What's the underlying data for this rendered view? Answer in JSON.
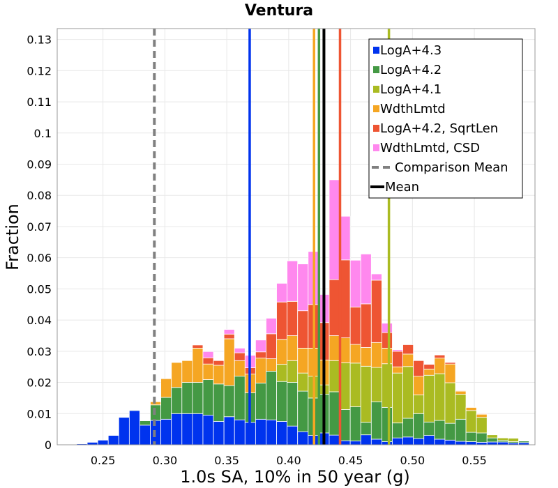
{
  "chart_data": {
    "type": "bar",
    "stacked": true,
    "title": "Ventura",
    "xlabel": "1.0s SA, 10% in 50 year (g)",
    "ylabel": "Fraction",
    "xlim": [
      0.213,
      0.599
    ],
    "ylim": [
      0,
      0.1335
    ],
    "xticks": [
      "0.25",
      "0.30",
      "0.35",
      "0.40",
      "0.45",
      "0.50",
      "0.55"
    ],
    "yticks": [
      "0",
      "0.01",
      "0.02",
      "0.03",
      "0.04",
      "0.05",
      "0.06",
      "0.07",
      "0.08",
      "0.09",
      "0.1",
      "0.11",
      "0.12",
      "0.13"
    ],
    "bin_width": 0.0085,
    "bin_centers": [
      0.2245,
      0.233,
      0.2415,
      0.25,
      0.2585,
      0.267,
      0.2755,
      0.284,
      0.2925,
      0.301,
      0.3095,
      0.318,
      0.3265,
      0.335,
      0.3435,
      0.352,
      0.3605,
      0.369,
      0.3775,
      0.386,
      0.3945,
      0.403,
      0.4115,
      0.42,
      0.4285,
      0.437,
      0.4455,
      0.454,
      0.4625,
      0.471,
      0.4795,
      0.488,
      0.4965,
      0.505,
      0.5135,
      0.522,
      0.5305,
      0.539,
      0.5475,
      0.556,
      0.5645,
      0.573,
      0.5815,
      0.59
    ],
    "series": [
      {
        "name": "LogA+4.3",
        "color": "#0033ee",
        "values": [
          0,
          0.0003,
          0.0008,
          0.0015,
          0.003,
          0.0088,
          0.011,
          0.0063,
          0.0078,
          0.0082,
          0.01,
          0.01,
          0.01,
          0.0095,
          0.0075,
          0.009,
          0.008,
          0.0072,
          0.0082,
          0.008,
          0.0075,
          0.006,
          0.0042,
          0.003,
          0.0038,
          0.0031,
          0.0013,
          0.0012,
          0.0032,
          0.0018,
          0.001,
          0.0022,
          0.0025,
          0.002,
          0.003,
          0.0018,
          0.0015,
          0.0011,
          0.001,
          0.0008,
          0.0009,
          0.0009,
          0.0006,
          0.0007
        ]
      },
      {
        "name": "LogA+4.2",
        "color": "#449944",
        "values": [
          0,
          0,
          0,
          0,
          0,
          0,
          0.0002,
          0.0014,
          0.005,
          0.007,
          0.0084,
          0.01,
          0.01,
          0.0114,
          0.012,
          0.01,
          0.014,
          0.0095,
          0.0116,
          0.0156,
          0.0128,
          0.014,
          0.013,
          0.012,
          0.0124,
          0.0139,
          0.01,
          0.011,
          0.004,
          0.012,
          0.011,
          0.0048,
          0.006,
          0.008,
          0.0043,
          0.006,
          0.0054,
          0.0071,
          0.003,
          0.003,
          0.0013,
          0.0005,
          0.0004,
          0.0005
        ]
      },
      {
        "name": "LogA+4.1",
        "color": "#aabb22",
        "values": [
          0,
          0,
          0,
          0,
          0,
          0,
          0,
          0,
          0,
          0,
          0,
          0,
          0,
          0,
          0,
          0,
          0,
          0,
          0,
          0,
          0.0055,
          0.007,
          0.0058,
          0.007,
          0.003,
          0.01,
          0.015,
          0.014,
          0.018,
          0.011,
          0.014,
          0.016,
          0.0166,
          0.006,
          0.015,
          0.015,
          0.013,
          0.008,
          0.007,
          0.005,
          0.001,
          0.0008,
          0.0011,
          0.0001
        ]
      },
      {
        "name": "WdthLmtd",
        "color": "#f5a623",
        "values": [
          0,
          0,
          0,
          0,
          0,
          0,
          0,
          0,
          0.001,
          0.006,
          0.008,
          0.007,
          0.011,
          0.005,
          0.006,
          0.015,
          0.005,
          0.006,
          0.008,
          0.004,
          0.008,
          0.008,
          0.008,
          0.009,
          0.008,
          0.008,
          0.008,
          0.006,
          0.006,
          0.008,
          0.005,
          0.002,
          0.004,
          0.006,
          0.002,
          0.005,
          0.006,
          0.001,
          0.001,
          0.001,
          0,
          0,
          0,
          0
        ]
      },
      {
        "name": "LogA+4.2, SqrtLen",
        "color": "#ee5533",
        "values": [
          0,
          0,
          0,
          0,
          0,
          0,
          0,
          0,
          0,
          0,
          0,
          0,
          0.001,
          0.002,
          0.0015,
          0.0015,
          0.0025,
          0.002,
          0.002,
          0.008,
          0.012,
          0.011,
          0.012,
          0.014,
          0.012,
          0.018,
          0.025,
          0.012,
          0.014,
          0.02,
          0.005,
          0.005,
          0.003,
          0.005,
          0.0015,
          0.001,
          0.0005,
          0.0002,
          0.0001,
          0.0002,
          0,
          0,
          0,
          0
        ]
      },
      {
        "name": "WdthLmtd, CSD",
        "color": "#ff88ee",
        "values": [
          0,
          0,
          0,
          0,
          0,
          0,
          0,
          0,
          0,
          0,
          0,
          0,
          0,
          0.002,
          0,
          0.0015,
          0.0015,
          0.004,
          0.0038,
          0.005,
          0.006,
          0.013,
          0.015,
          0.017,
          0.009,
          0.032,
          0.014,
          0.015,
          0.016,
          0.002,
          0.003,
          0.0005,
          0,
          0,
          0,
          0,
          0,
          0,
          0,
          0,
          0,
          0,
          0,
          0
        ]
      }
    ],
    "vlines": [
      {
        "name": "LogA+4.3 mean",
        "x": 0.3685,
        "color": "#0033ee",
        "style": "solid"
      },
      {
        "name": "WdthLmtd mean",
        "x": 0.4205,
        "color": "#f5a623",
        "style": "solid"
      },
      {
        "name": "LogA+4.2 mean",
        "x": 0.4245,
        "color": "#449944",
        "style": "solid"
      },
      {
        "name": "LogA+4.2, SqrtLen mean",
        "x": 0.4415,
        "color": "#ee5533",
        "style": "solid"
      },
      {
        "name": "LogA+4.1 mean",
        "x": 0.481,
        "color": "#aabb22",
        "style": "solid"
      },
      {
        "name": "Comparison Mean",
        "x": 0.2915,
        "color": "#808080",
        "style": "dashed"
      },
      {
        "name": "Mean",
        "x": 0.4285,
        "color": "#000000",
        "style": "solid"
      }
    ],
    "legend": {
      "position": "top-right",
      "entries": [
        {
          "label": "LogA+4.3",
          "kind": "square",
          "color": "#0033ee"
        },
        {
          "label": "LogA+4.2",
          "kind": "square",
          "color": "#449944"
        },
        {
          "label": "LogA+4.1",
          "kind": "square",
          "color": "#aabb22"
        },
        {
          "label": "WdthLmtd",
          "kind": "square",
          "color": "#f5a623"
        },
        {
          "label": "LogA+4.2, SqrtLen",
          "kind": "square",
          "color": "#ee5533"
        },
        {
          "label": "WdthLmtd, CSD",
          "kind": "square",
          "color": "#ff88ee"
        },
        {
          "label": "Comparison Mean",
          "kind": "dashed",
          "color": "#808080"
        },
        {
          "label": "Mean",
          "kind": "line",
          "color": "#000000"
        }
      ]
    }
  }
}
